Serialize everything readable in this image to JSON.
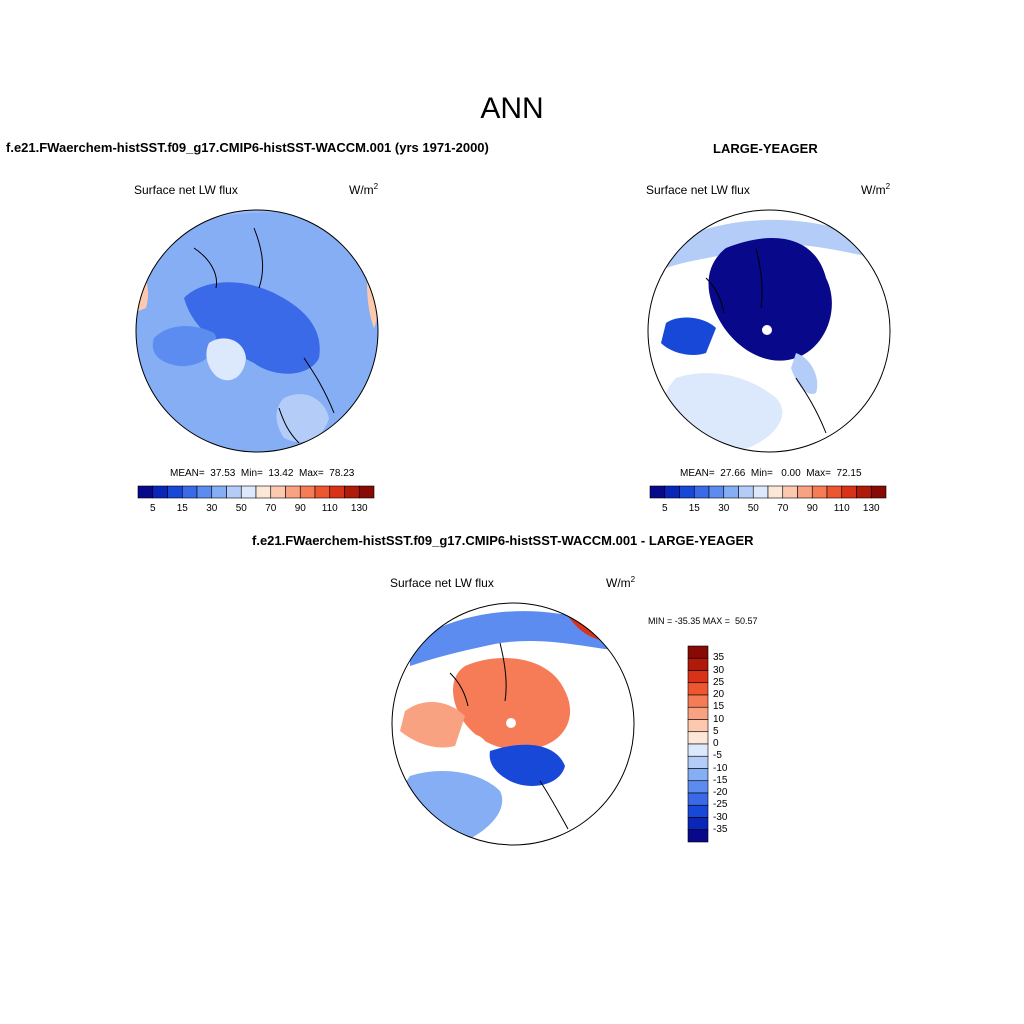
{
  "figure": {
    "title": "ANN"
  },
  "panels": [
    {
      "title": "f.e21.FWaerchem-histSST.f09_g17.CMIP6-histSST-WACCM.001 (yrs 1971-2000)",
      "field": "Surface net LW flux",
      "units_base": "W/m",
      "units_exp": "2",
      "stats": {
        "mean_label": "MEAN=",
        "mean": "37.53",
        "min_label": "Min=",
        "min": "13.42",
        "max_label": "Max=",
        "max": "78.23"
      }
    },
    {
      "title": "LARGE-YEAGER",
      "field": "Surface net LW flux",
      "units_base": "W/m",
      "units_exp": "2",
      "stats": {
        "mean_label": "MEAN=",
        "mean": "27.66",
        "min_label": "Min=",
        "min": "0.00",
        "max_label": "Max=",
        "max": "72.15"
      }
    }
  ],
  "diff_panel": {
    "title": "f.e21.FWaerchem-histSST.f09_g17.CMIP6-histSST-WACCM.001 - LARGE-YEAGER",
    "field": "Surface net LW flux",
    "units_base": "W/m",
    "units_exp": "2",
    "minmax": "MIN = -35.35 MAX =  50.57"
  },
  "colorbar_abs": {
    "colors": [
      "#08088a",
      "#0a26b8",
      "#1848d8",
      "#3a6ae8",
      "#5c8cf0",
      "#86aef5",
      "#b4cdf8",
      "#dce8fc",
      "#fde7d8",
      "#fcc8ae",
      "#f9a282",
      "#f57c56",
      "#ee5630",
      "#d83218",
      "#b01a0a",
      "#880a06"
    ],
    "ticks": [
      "5",
      "15",
      "30",
      "50",
      "70",
      "90",
      "110",
      "130"
    ]
  },
  "colorbar_diff": {
    "colors": [
      "#880a06",
      "#b01a0a",
      "#d83218",
      "#ee5630",
      "#f57c56",
      "#f9a282",
      "#fcc8ae",
      "#fde7d8",
      "#dce8fc",
      "#b4cdf8",
      "#86aef5",
      "#5c8cf0",
      "#3a6ae8",
      "#1848d8",
      "#0a26b8",
      "#08088a"
    ],
    "ticks": [
      "35",
      "30",
      "25",
      "20",
      "15",
      "10",
      "5",
      "0",
      "-5",
      "-10",
      "-15",
      "-20",
      "-25",
      "-30",
      "-35"
    ]
  }
}
